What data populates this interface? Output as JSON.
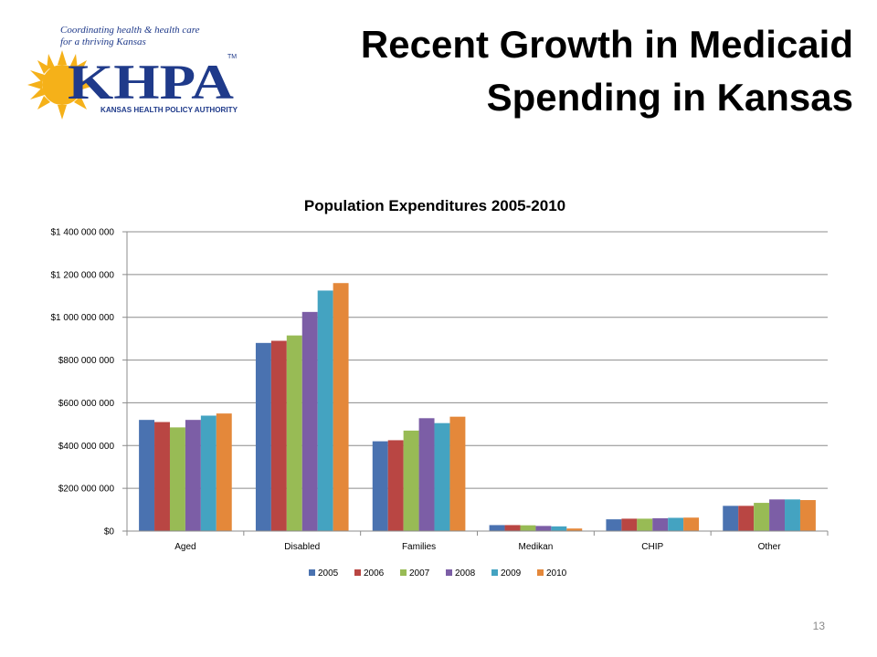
{
  "slide": {
    "title_line1": "Recent Growth in Medicaid",
    "title_line2": "Spending in Kansas",
    "page_number": "13"
  },
  "logo": {
    "tagline_line1": "Coordinating health & health care",
    "tagline_line2": "for a thriving Kansas",
    "wordmark": "KHPA",
    "trademark": "TM",
    "subtitle": "KANSAS HEALTH POLICY AUTHORITY",
    "colors": {
      "navy": "#1f3a8a",
      "sun": "#f5b119"
    }
  },
  "chart_data": {
    "type": "bar",
    "title": "Population Expenditures 2005-2010",
    "xlabel": "",
    "ylabel": "",
    "ylim": [
      0,
      1400000000
    ],
    "y_ticks": [
      "$0",
      "$200 000 000",
      "$400 000 000",
      "$600 000 000",
      "$800 000 000",
      "$1 000 000 000",
      "$1 200 000 000",
      "$1 400 000 000"
    ],
    "y_tick_values": [
      0,
      200000000,
      400000000,
      600000000,
      800000000,
      1000000000,
      1200000000,
      1400000000
    ],
    "grid": true,
    "legend_position": "bottom",
    "categories": [
      "Aged",
      "Disabled",
      "Families",
      "Medikan",
      "CHIP",
      "Other"
    ],
    "series": [
      {
        "name": "2005",
        "color": "#4a72b0",
        "values": [
          520000000,
          880000000,
          420000000,
          28000000,
          55000000,
          118000000
        ]
      },
      {
        "name": "2006",
        "color": "#b94643",
        "values": [
          510000000,
          890000000,
          425000000,
          28000000,
          58000000,
          118000000
        ]
      },
      {
        "name": "2007",
        "color": "#98bb55",
        "values": [
          485000000,
          915000000,
          470000000,
          27000000,
          58000000,
          132000000
        ]
      },
      {
        "name": "2008",
        "color": "#7c5ea6",
        "values": [
          520000000,
          1025000000,
          528000000,
          24000000,
          60000000,
          148000000
        ]
      },
      {
        "name": "2009",
        "color": "#44a3c1",
        "values": [
          540000000,
          1125000000,
          505000000,
          22000000,
          62000000,
          148000000
        ]
      },
      {
        "name": "2010",
        "color": "#e4883a",
        "values": [
          550000000,
          1160000000,
          535000000,
          12000000,
          63000000,
          145000000
        ]
      }
    ]
  }
}
